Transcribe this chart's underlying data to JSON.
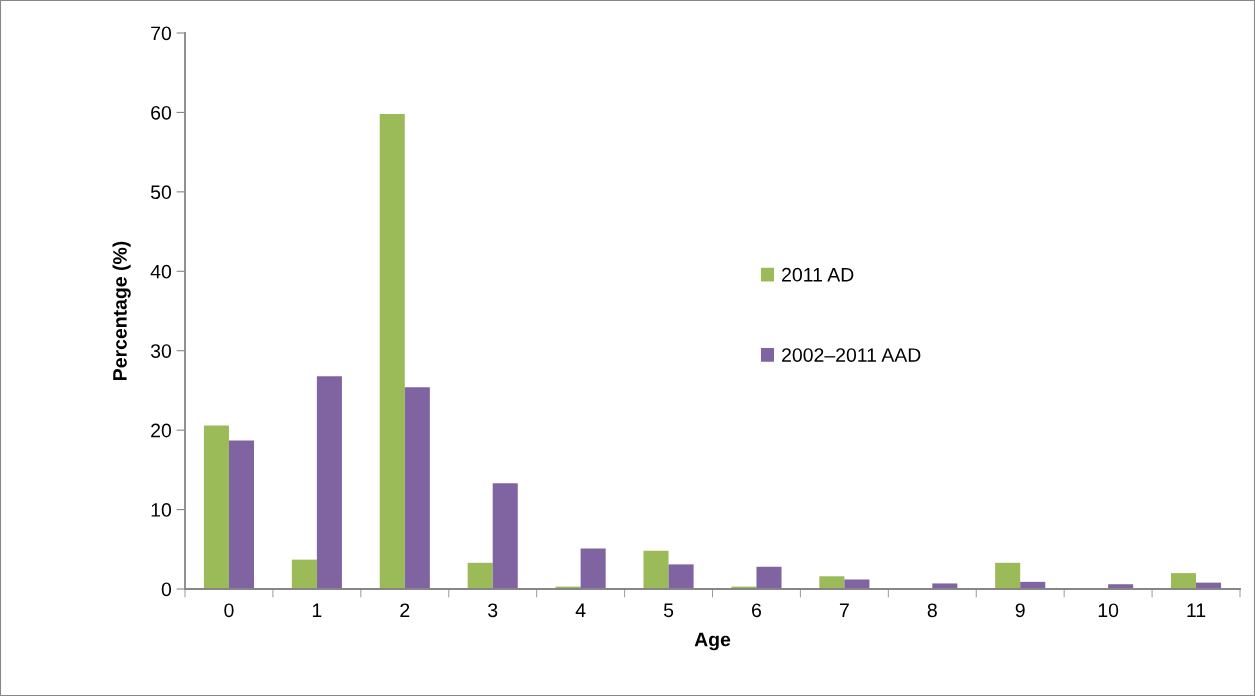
{
  "chart_data": {
    "type": "bar",
    "xlabel": "Age",
    "ylabel": "Percentage (%)",
    "categories": [
      "0",
      "1",
      "2",
      "3",
      "4",
      "5",
      "6",
      "7",
      "8",
      "9",
      "10",
      "11"
    ],
    "series": [
      {
        "name": "2011 AD",
        "color": "#9bbb59",
        "values": [
          20.6,
          3.7,
          59.8,
          3.3,
          0.3,
          4.8,
          0.3,
          1.6,
          0,
          3.3,
          0,
          2.0
        ]
      },
      {
        "name": "2002–2011 AAD",
        "color": "#8064a2",
        "values": [
          18.7,
          26.8,
          25.4,
          13.3,
          5.1,
          3.1,
          2.8,
          1.2,
          0.7,
          0.9,
          0.6,
          0.8
        ]
      }
    ],
    "ylim": [
      0,
      70
    ],
    "yticks": [
      0,
      10,
      20,
      30,
      40,
      50,
      60,
      70
    ],
    "grid": false,
    "legend": "center"
  }
}
